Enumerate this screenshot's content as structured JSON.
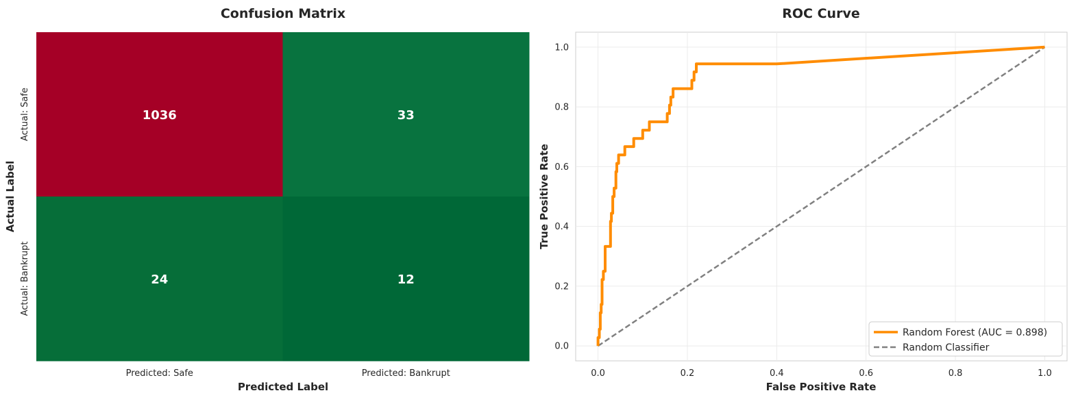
{
  "chart_data": [
    {
      "type": "heatmap",
      "title": "Confusion Matrix",
      "xlabel": "Predicted Label",
      "ylabel": "Actual Label",
      "x_categories": [
        "Predicted: Safe",
        "Predicted: Bankrupt"
      ],
      "y_categories": [
        "Actual: Safe",
        "Actual: Bankrupt"
      ],
      "values": [
        [
          1036,
          33
        ],
        [
          24,
          12
        ]
      ],
      "colormap": "RdYlGn_r",
      "cell_colors": [
        [
          "#a50026",
          "#08733f"
        ],
        [
          "#066e39",
          "#006837"
        ]
      ],
      "annotation_color": "#ffffff"
    },
    {
      "type": "line",
      "title": "ROC Curve",
      "xlabel": "False Positive Rate",
      "ylabel": "True Positive Rate",
      "xlim": [
        -0.05,
        1.05
      ],
      "ylim": [
        -0.05,
        1.05
      ],
      "xticks": [
        "0.0",
        "0.2",
        "0.4",
        "0.6",
        "0.8",
        "1.0"
      ],
      "yticks": [
        "0.0",
        "0.2",
        "0.4",
        "0.6",
        "0.8",
        "1.0"
      ],
      "grid": true,
      "legend": "lower right",
      "series": [
        {
          "name": "Random Forest (AUC = 0.898)",
          "color": "#ff8c00",
          "style": "solid",
          "x": [
            0.0,
            0.0,
            0.003,
            0.003,
            0.005,
            0.005,
            0.007,
            0.007,
            0.009,
            0.009,
            0.012,
            0.012,
            0.016,
            0.016,
            0.02,
            0.02,
            0.028,
            0.028,
            0.03,
            0.03,
            0.033,
            0.033,
            0.036,
            0.036,
            0.04,
            0.04,
            0.042,
            0.042,
            0.046,
            0.046,
            0.05,
            0.05,
            0.06,
            0.06,
            0.08,
            0.08,
            0.1,
            0.1,
            0.115,
            0.115,
            0.155,
            0.155,
            0.16,
            0.16,
            0.163,
            0.163,
            0.168,
            0.168,
            0.185,
            0.185,
            0.21,
            0.21,
            0.215,
            0.215,
            0.22,
            0.22,
            0.225,
            0.225,
            0.4,
            1.0
          ],
          "y": [
            0.0,
            0.028,
            0.028,
            0.056,
            0.056,
            0.111,
            0.111,
            0.139,
            0.139,
            0.222,
            0.222,
            0.25,
            0.25,
            0.333,
            0.333,
            0.333,
            0.333,
            0.417,
            0.417,
            0.444,
            0.444,
            0.5,
            0.5,
            0.528,
            0.528,
            0.583,
            0.583,
            0.611,
            0.611,
            0.639,
            0.639,
            0.639,
            0.639,
            0.667,
            0.667,
            0.694,
            0.694,
            0.722,
            0.722,
            0.75,
            0.75,
            0.778,
            0.778,
            0.806,
            0.806,
            0.833,
            0.833,
            0.861,
            0.861,
            0.861,
            0.861,
            0.889,
            0.889,
            0.917,
            0.917,
            0.944,
            0.944,
            0.944,
            0.944,
            1.0
          ]
        },
        {
          "name": "Random Classifier",
          "color": "#808080",
          "style": "dashed",
          "x": [
            0,
            1
          ],
          "y": [
            0,
            1
          ]
        }
      ]
    }
  ]
}
